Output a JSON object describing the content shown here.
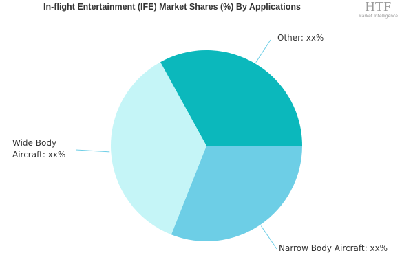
{
  "chart_data": {
    "type": "pie",
    "title": "In-flight Entertainment (IFE) Market Shares (%) By Applications",
    "categories": [
      "Narrow Body Aircraft: xx%",
      "Wide Body Aircraft: xx%",
      "Other: xx%"
    ],
    "values": [
      31,
      36,
      33
    ],
    "colors": [
      "#6dcee6",
      "#c5f5f7",
      "#0bb8bc"
    ]
  },
  "logo": {
    "text": "HTF",
    "subtext": "Market Intelligence"
  }
}
